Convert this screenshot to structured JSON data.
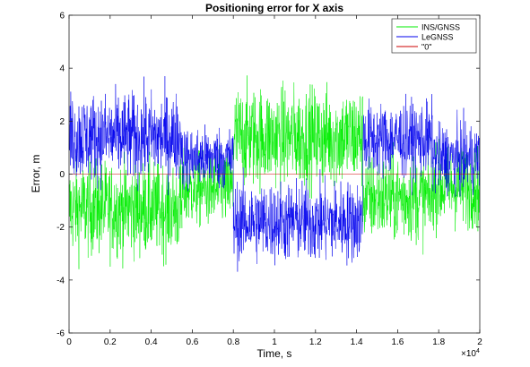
{
  "chart_data": {
    "type": "line",
    "title": "Positioning error for X axis",
    "xlabel": "Time, s",
    "ylabel": "Error, m",
    "x_exponent_label": "×10",
    "x_exponent_power": "4",
    "xlim": [
      0,
      20000
    ],
    "ylim": [
      -6,
      6
    ],
    "xticks": [
      0,
      2000,
      4000,
      6000,
      8000,
      10000,
      12000,
      14000,
      16000,
      18000,
      20000
    ],
    "xtick_labels": [
      "0",
      "0.2",
      "0.4",
      "0.6",
      "0.8",
      "1",
      "1.2",
      "1.4",
      "1.6",
      "1.8",
      "2"
    ],
    "yticks": [
      -6,
      -4,
      -2,
      0,
      2,
      4,
      6
    ],
    "ytick_labels": [
      "-6",
      "-4",
      "-2",
      "0",
      "2",
      "4",
      "6"
    ],
    "grid": false,
    "legend_position": "top-right",
    "series": [
      {
        "name": "INS/GNSS",
        "color": "#00ee00",
        "segments": [
          {
            "x_start": 0,
            "x_end": 5500,
            "mean": -1.3,
            "spread": 3.0
          },
          {
            "x_start": 5500,
            "x_end": 8000,
            "mean": -0.6,
            "spread": 2.4
          },
          {
            "x_start": 8000,
            "x_end": 14300,
            "mean": 1.4,
            "spread": 3.2
          },
          {
            "x_start": 14300,
            "x_end": 17700,
            "mean": -0.9,
            "spread": 2.8
          },
          {
            "x_start": 17700,
            "x_end": 20000,
            "mean": -0.5,
            "spread": 2.6
          }
        ]
      },
      {
        "name": "LeGNSS",
        "color": "#0000ee",
        "segments": [
          {
            "x_start": 0,
            "x_end": 5500,
            "mean": 1.4,
            "spread": 2.8
          },
          {
            "x_start": 5500,
            "x_end": 8000,
            "mean": 0.6,
            "spread": 2.0
          },
          {
            "x_start": 8000,
            "x_end": 14300,
            "mean": -1.8,
            "spread": 2.6
          },
          {
            "x_start": 14300,
            "x_end": 17700,
            "mean": 1.3,
            "spread": 2.4
          },
          {
            "x_start": 17700,
            "x_end": 20000,
            "mean": 0.6,
            "spread": 2.2
          }
        ]
      },
      {
        "name": "\"0\"",
        "color": "#cc0000",
        "x": [
          0,
          20000
        ],
        "y": [
          0,
          0
        ]
      }
    ]
  }
}
